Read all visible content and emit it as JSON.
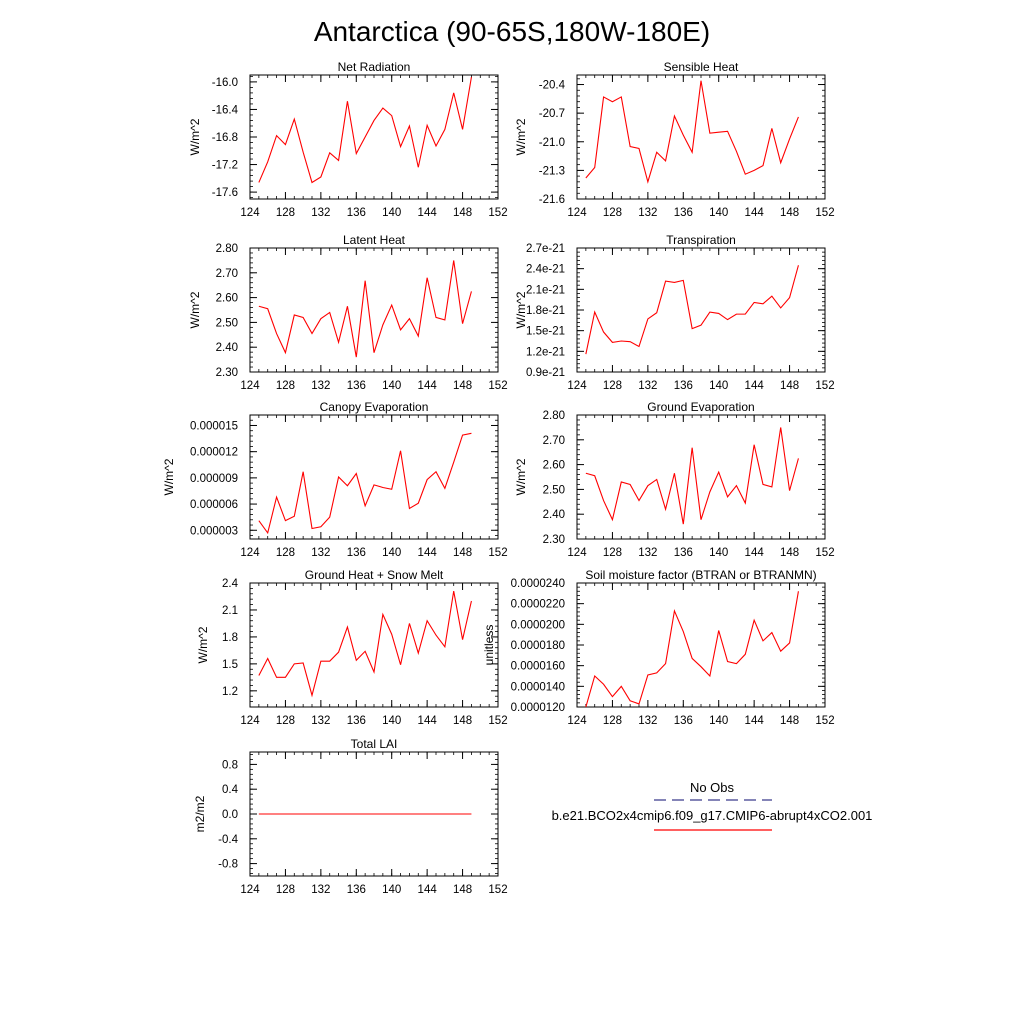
{
  "figure": {
    "title": "Antarctica (90-65S,180W-180E)"
  },
  "chart_data": [
    {
      "type": "line",
      "title": "Net Radiation",
      "ylabel": "W/m^2",
      "xlim": [
        124,
        152
      ],
      "ylim": [
        -17.7,
        -15.9
      ],
      "xticks": [
        124,
        128,
        132,
        136,
        140,
        144,
        148,
        152
      ],
      "xtick_labels": [
        "124",
        "128",
        "132",
        "136",
        "140",
        "144",
        "148",
        "152"
      ],
      "yticks": [
        -17.6,
        -17.2,
        -16.8,
        -16.4,
        -16.0
      ],
      "ytick_labels": [
        "-17.6",
        "-17.2",
        "-16.8",
        "-16.4",
        "-16.0"
      ],
      "series": [
        {
          "x": [
            125,
            126,
            127,
            128,
            129,
            130,
            131,
            132,
            133,
            134,
            135,
            136,
            137,
            138,
            139,
            140,
            141,
            142,
            143,
            144,
            145,
            146,
            147,
            148,
            149
          ],
          "values": [
            -17.46,
            -17.16,
            -16.78,
            -16.91,
            -16.54,
            -17.02,
            -17.46,
            -17.38,
            -17.03,
            -17.14,
            -16.28,
            -17.04,
            -16.8,
            -16.56,
            -16.38,
            -16.49,
            -16.94,
            -16.64,
            -17.24,
            -16.63,
            -16.93,
            -16.69,
            -16.16,
            -16.69,
            -15.93
          ]
        }
      ],
      "grid": false
    },
    {
      "type": "line",
      "title": "Sensible Heat",
      "ylabel": "W/m^2",
      "xlim": [
        124,
        152
      ],
      "ylim": [
        -21.6,
        -20.3
      ],
      "xticks": [
        124,
        128,
        132,
        136,
        140,
        144,
        148,
        152
      ],
      "xtick_labels": [
        "124",
        "128",
        "132",
        "136",
        "140",
        "144",
        "148",
        "152"
      ],
      "yticks": [
        -21.6,
        -21.3,
        -21.0,
        -20.7,
        -20.4
      ],
      "ytick_labels": [
        "-21.6",
        "-21.3",
        "-21.0",
        "-20.7",
        "-20.4"
      ],
      "series": [
        {
          "x": [
            125,
            126,
            127,
            128,
            129,
            130,
            131,
            132,
            133,
            134,
            135,
            136,
            137,
            138,
            139,
            140,
            141,
            142,
            143,
            144,
            145,
            146,
            147,
            148,
            149
          ],
          "values": [
            -21.38,
            -21.27,
            -20.53,
            -20.58,
            -20.53,
            -21.05,
            -21.07,
            -21.42,
            -21.11,
            -21.2,
            -20.73,
            -20.93,
            -21.11,
            -20.36,
            -20.91,
            -20.9,
            -20.89,
            -21.1,
            -21.34,
            -21.3,
            -21.25,
            -20.86,
            -21.22,
            -20.97,
            -20.74
          ]
        }
      ],
      "grid": false
    },
    {
      "type": "line",
      "title": "Latent Heat",
      "ylabel": "W/m^2",
      "xlim": [
        124,
        152
      ],
      "ylim": [
        2.3,
        2.8
      ],
      "xticks": [
        124,
        128,
        132,
        136,
        140,
        144,
        148,
        152
      ],
      "xtick_labels": [
        "124",
        "128",
        "132",
        "136",
        "140",
        "144",
        "148",
        "152"
      ],
      "yticks": [
        2.3,
        2.4,
        2.5,
        2.6,
        2.7,
        2.8
      ],
      "ytick_labels": [
        "2.30",
        "2.40",
        "2.50",
        "2.60",
        "2.70",
        "2.80"
      ],
      "series": [
        {
          "x": [
            125,
            126,
            127,
            128,
            129,
            130,
            131,
            132,
            133,
            134,
            135,
            136,
            137,
            138,
            139,
            140,
            141,
            142,
            143,
            144,
            145,
            146,
            147,
            148,
            149
          ],
          "values": [
            2.565,
            2.555,
            2.455,
            2.378,
            2.53,
            2.52,
            2.455,
            2.515,
            2.54,
            2.42,
            2.565,
            2.36,
            2.668,
            2.378,
            2.49,
            2.57,
            2.47,
            2.515,
            2.445,
            2.68,
            2.52,
            2.51,
            2.75,
            2.495,
            2.625
          ]
        }
      ],
      "grid": false
    },
    {
      "type": "line",
      "title": "Transpiration",
      "ylabel": "W/m^2",
      "xlim": [
        124,
        152
      ],
      "ylim": [
        9e-22,
        2.7e-21
      ],
      "xticks": [
        124,
        128,
        132,
        136,
        140,
        144,
        148,
        152
      ],
      "xtick_labels": [
        "124",
        "128",
        "132",
        "136",
        "140",
        "144",
        "148",
        "152"
      ],
      "yticks": [
        9e-22,
        1.2e-21,
        1.5e-21,
        1.8e-21,
        2.1e-21,
        2.4e-21,
        2.7e-21
      ],
      "ytick_labels": [
        "0.9e-21",
        "1.2e-21",
        "1.5e-21",
        "1.8e-21",
        "2.1e-21",
        "2.4e-21",
        "2.7e-21"
      ],
      "series": [
        {
          "x": [
            125,
            126,
            127,
            128,
            129,
            130,
            131,
            132,
            133,
            134,
            135,
            136,
            137,
            138,
            139,
            140,
            141,
            142,
            143,
            144,
            145,
            146,
            147,
            148,
            149
          ],
          "values": [
            1.16e-21,
            1.77e-21,
            1.48e-21,
            1.33e-21,
            1.35e-21,
            1.34e-21,
            1.27e-21,
            1.67e-21,
            1.76e-21,
            2.22e-21,
            2.2e-21,
            2.23e-21,
            1.53e-21,
            1.58e-21,
            1.77e-21,
            1.75e-21,
            1.66e-21,
            1.74e-21,
            1.74e-21,
            1.91e-21,
            1.89e-21,
            2e-21,
            1.83e-21,
            1.98e-21,
            2.45e-21
          ]
        }
      ],
      "grid": false
    },
    {
      "type": "line",
      "title": "Canopy Evaporation",
      "ylabel": "W/m^2",
      "xlim": [
        124,
        152
      ],
      "ylim": [
        2e-06,
        1.62e-05
      ],
      "xticks": [
        124,
        128,
        132,
        136,
        140,
        144,
        148,
        152
      ],
      "xtick_labels": [
        "124",
        "128",
        "132",
        "136",
        "140",
        "144",
        "148",
        "152"
      ],
      "yticks": [
        3e-06,
        6e-06,
        9e-06,
        1.2e-05,
        1.5e-05
      ],
      "ytick_labels": [
        "0.000003",
        "0.000006",
        "0.000009",
        "0.000012",
        "0.000015"
      ],
      "series": [
        {
          "x": [
            125,
            126,
            127,
            128,
            129,
            130,
            131,
            132,
            133,
            134,
            135,
            136,
            137,
            138,
            139,
            140,
            141,
            142,
            143,
            144,
            145,
            146,
            147,
            148,
            149
          ],
          "values": [
            4.1e-06,
            2.7e-06,
            6.8e-06,
            4.1e-06,
            4.6e-06,
            9.7e-06,
            3.2e-06,
            3.4e-06,
            4.5e-06,
            9.1e-06,
            8.1e-06,
            9.5e-06,
            5.8e-06,
            8.2e-06,
            7.9e-06,
            7.7e-06,
            1.21e-05,
            5.5e-06,
            6.1e-06,
            8.8e-06,
            9.7e-06,
            7.8e-06,
            1.08e-05,
            1.39e-05,
            1.41e-05
          ]
        }
      ],
      "grid": false
    },
    {
      "type": "line",
      "title": "Ground Evaporation",
      "ylabel": "W/m^2",
      "xlim": [
        124,
        152
      ],
      "ylim": [
        2.3,
        2.8
      ],
      "xticks": [
        124,
        128,
        132,
        136,
        140,
        144,
        148,
        152
      ],
      "xtick_labels": [
        "124",
        "128",
        "132",
        "136",
        "140",
        "144",
        "148",
        "152"
      ],
      "yticks": [
        2.3,
        2.4,
        2.5,
        2.6,
        2.7,
        2.8
      ],
      "ytick_labels": [
        "2.30",
        "2.40",
        "2.50",
        "2.60",
        "2.70",
        "2.80"
      ],
      "series": [
        {
          "x": [
            125,
            126,
            127,
            128,
            129,
            130,
            131,
            132,
            133,
            134,
            135,
            136,
            137,
            138,
            139,
            140,
            141,
            142,
            143,
            144,
            145,
            146,
            147,
            148,
            149
          ],
          "values": [
            2.565,
            2.555,
            2.455,
            2.378,
            2.53,
            2.52,
            2.455,
            2.515,
            2.54,
            2.42,
            2.565,
            2.36,
            2.668,
            2.378,
            2.49,
            2.57,
            2.47,
            2.515,
            2.445,
            2.68,
            2.52,
            2.51,
            2.75,
            2.495,
            2.625
          ]
        }
      ],
      "grid": false
    },
    {
      "type": "line",
      "title": "Ground Heat + Snow Melt",
      "ylabel": "W/m^2",
      "xlim": [
        124,
        152
      ],
      "ylim": [
        1.02,
        2.4
      ],
      "xticks": [
        124,
        128,
        132,
        136,
        140,
        144,
        148,
        152
      ],
      "xtick_labels": [
        "124",
        "128",
        "132",
        "136",
        "140",
        "144",
        "148",
        "152"
      ],
      "yticks": [
        1.2,
        1.5,
        1.8,
        2.1,
        2.4
      ],
      "ytick_labels": [
        "1.2",
        "1.5",
        "1.8",
        "2.1",
        "2.4"
      ],
      "series": [
        {
          "x": [
            125,
            126,
            127,
            128,
            129,
            130,
            131,
            132,
            133,
            134,
            135,
            136,
            137,
            138,
            139,
            140,
            141,
            142,
            143,
            144,
            145,
            146,
            147,
            148,
            149
          ],
          "values": [
            1.37,
            1.56,
            1.35,
            1.35,
            1.5,
            1.51,
            1.15,
            1.53,
            1.53,
            1.63,
            1.91,
            1.54,
            1.64,
            1.41,
            2.05,
            1.83,
            1.49,
            1.95,
            1.62,
            1.98,
            1.82,
            1.69,
            2.31,
            1.77,
            2.2
          ]
        }
      ],
      "grid": false
    },
    {
      "type": "line",
      "title": "Soil moisture factor (BTRAN or BTRANMN)",
      "ylabel": "unitless",
      "xlim": [
        124,
        152
      ],
      "ylim": [
        1.2e-05,
        2.4e-05
      ],
      "xticks": [
        124,
        128,
        132,
        136,
        140,
        144,
        148,
        152
      ],
      "xtick_labels": [
        "124",
        "128",
        "132",
        "136",
        "140",
        "144",
        "148",
        "152"
      ],
      "yticks": [
        1.2e-05,
        1.4e-05,
        1.6e-05,
        1.8e-05,
        2e-05,
        2.2e-05,
        2.4e-05
      ],
      "ytick_labels": [
        "0.0000120",
        "0.0000140",
        "0.0000160",
        "0.0000180",
        "0.0000200",
        "0.0000220",
        "0.0000240"
      ],
      "series": [
        {
          "x": [
            125,
            126,
            127,
            128,
            129,
            130,
            131,
            132,
            133,
            134,
            135,
            136,
            137,
            138,
            139,
            140,
            141,
            142,
            143,
            144,
            145,
            146,
            147,
            148,
            149
          ],
          "values": [
            1.2e-05,
            1.5e-05,
            1.42e-05,
            1.3e-05,
            1.4e-05,
            1.26e-05,
            1.23e-05,
            1.51e-05,
            1.53e-05,
            1.62e-05,
            2.13e-05,
            1.93e-05,
            1.67e-05,
            1.59e-05,
            1.5e-05,
            1.94e-05,
            1.64e-05,
            1.62e-05,
            1.71e-05,
            2.04e-05,
            1.84e-05,
            1.92e-05,
            1.74e-05,
            1.82e-05,
            2.32e-05
          ]
        }
      ],
      "grid": false
    },
    {
      "type": "line",
      "title": "Total LAI",
      "ylabel": "m2/m2",
      "xlim": [
        124,
        152
      ],
      "ylim": [
        -1.0,
        1.0
      ],
      "xticks": [
        124,
        128,
        132,
        136,
        140,
        144,
        148,
        152
      ],
      "xtick_labels": [
        "124",
        "128",
        "132",
        "136",
        "140",
        "144",
        "148",
        "152"
      ],
      "yticks": [
        -0.8,
        -0.4,
        0.0,
        0.4,
        0.8
      ],
      "ytick_labels": [
        "-0.8",
        "-0.4",
        "0.0",
        "0.4",
        "0.8"
      ],
      "series": [
        {
          "x": [
            125,
            126,
            127,
            128,
            129,
            130,
            131,
            132,
            133,
            134,
            135,
            136,
            137,
            138,
            139,
            140,
            141,
            142,
            143,
            144,
            145,
            146,
            147,
            148,
            149
          ],
          "values": [
            0,
            0,
            0,
            0,
            0,
            0,
            0,
            0,
            0,
            0,
            0,
            0,
            0,
            0,
            0,
            0,
            0,
            0,
            0,
            0,
            0,
            0,
            0,
            0,
            0
          ]
        }
      ],
      "grid": false
    }
  ],
  "legend": {
    "items": [
      {
        "label": "No Obs",
        "color": "#3a3a8c",
        "style": "dashed"
      },
      {
        "label": "b.e21.BCO2x4cmip6.f09_g17.CMIP6-abrupt4xCO2.001",
        "color": "#ff0000",
        "style": "solid"
      }
    ]
  },
  "colors": {
    "series": "#ff0000",
    "axis": "#000000"
  }
}
